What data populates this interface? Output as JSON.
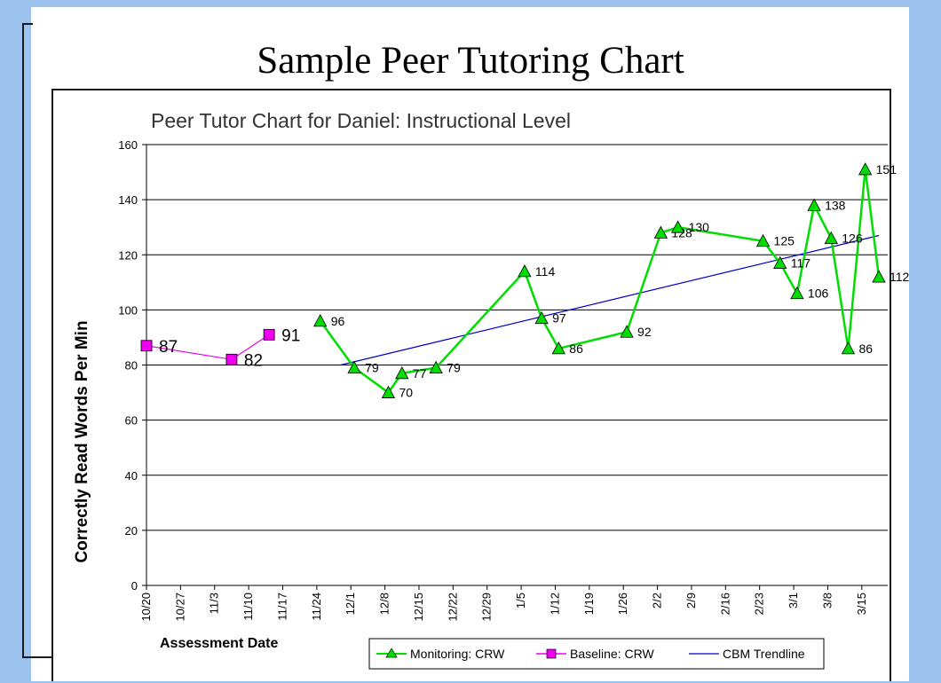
{
  "slide": {
    "title": "Sample Peer Tutoring Chart"
  },
  "colors": {
    "background": "#9cc3ee",
    "monitoring": "#00dd00",
    "baseline": "#ee00ee",
    "trend": "#0000cc",
    "gridline": "#000000"
  },
  "chart_data": {
    "type": "line",
    "title": "Peer Tutor Chart for Daniel: Instructional Level",
    "xlabel": "Assessment Date",
    "ylabel": "Correctly Read Words Per Min",
    "ylim": [
      0,
      160
    ],
    "yticks": [
      0,
      20,
      40,
      60,
      80,
      100,
      120,
      140,
      160
    ],
    "grid": true,
    "legend_position": "bottom-right",
    "x_categories": [
      "10/20",
      "10/27",
      "11/3",
      "11/10",
      "11/17",
      "11/24",
      "12/1",
      "12/8",
      "12/15",
      "12/22",
      "12/29",
      "1/5",
      "1/12",
      "1/19",
      "1/26",
      "2/2",
      "2/9",
      "2/16",
      "2/23",
      "3/1",
      "3/8",
      "3/15"
    ],
    "series": [
      {
        "name": "Baseline: CRW",
        "marker": "square",
        "points": [
          {
            "x": 0,
            "y": 87,
            "label": "87"
          },
          {
            "x": 2.5,
            "y": 82,
            "label": "82"
          },
          {
            "x": 3.6,
            "y": 91,
            "label": "91"
          }
        ]
      },
      {
        "name": "Monitoring: CRW",
        "marker": "triangle",
        "points": [
          {
            "x": 5.1,
            "y": 96,
            "label": "96"
          },
          {
            "x": 6.1,
            "y": 79,
            "label": "79"
          },
          {
            "x": 7.1,
            "y": 70,
            "label": "70"
          },
          {
            "x": 7.5,
            "y": 77,
            "label": "77"
          },
          {
            "x": 8.5,
            "y": 79,
            "label": "79"
          },
          {
            "x": 11.1,
            "y": 114,
            "label": "114"
          },
          {
            "x": 11.6,
            "y": 97,
            "label": "97"
          },
          {
            "x": 12.1,
            "y": 86,
            "label": "86"
          },
          {
            "x": 14.1,
            "y": 92,
            "label": "92"
          },
          {
            "x": 15.1,
            "y": 128,
            "label": "128"
          },
          {
            "x": 15.6,
            "y": 130,
            "label": "130"
          },
          {
            "x": 18.1,
            "y": 125,
            "label": "125"
          },
          {
            "x": 18.6,
            "y": 117,
            "label": "117"
          },
          {
            "x": 19.1,
            "y": 106,
            "label": "106"
          },
          {
            "x": 19.6,
            "y": 138,
            "label": "138"
          },
          {
            "x": 20.1,
            "y": 126,
            "label": "126"
          },
          {
            "x": 20.6,
            "y": 86,
            "label": "86"
          },
          {
            "x": 21.1,
            "y": 151,
            "label": "151"
          },
          {
            "x": 21.5,
            "y": 112,
            "label": "112"
          }
        ]
      },
      {
        "name": "CBM Trendline",
        "marker": "none",
        "points": [
          {
            "x": 5.7,
            "y": 80
          },
          {
            "x": 21.5,
            "y": 127
          }
        ]
      }
    ]
  }
}
